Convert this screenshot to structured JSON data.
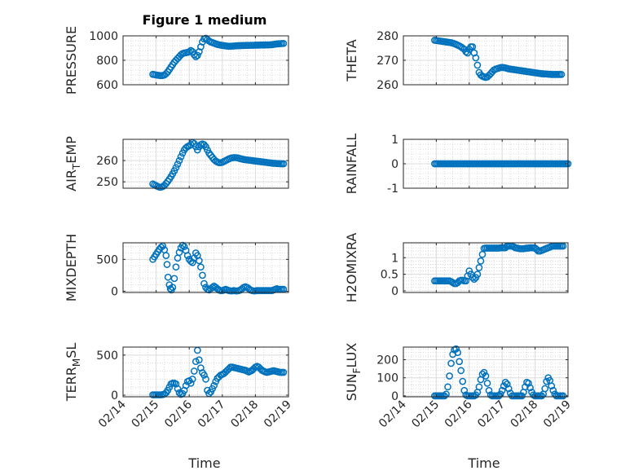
{
  "figure": {
    "title": "Figure 1 medium",
    "xlabel": "Time",
    "marker_color": "#0072BD",
    "x_ticks": [
      "02/14",
      "02/15",
      "02/16",
      "02/17",
      "02/18",
      "02/19"
    ]
  },
  "chart_data": [
    {
      "type": "scatter",
      "ylabel": "PRESSURE",
      "ylabel_sub": "",
      "ylim": [
        600,
        1000
      ],
      "yticks": [
        600,
        800,
        1000
      ],
      "grid": true,
      "x": [
        0.9,
        0.95,
        1.0,
        1.05,
        1.1,
        1.15,
        1.2,
        1.25,
        1.3,
        1.35,
        1.4,
        1.45,
        1.5,
        1.55,
        1.6,
        1.65,
        1.7,
        1.75,
        1.8,
        1.85,
        1.9,
        1.95,
        2.0,
        2.05,
        2.1,
        2.15,
        2.2,
        2.25,
        2.3,
        2.35,
        2.4,
        2.45,
        2.5,
        2.55,
        2.6,
        2.65,
        2.7,
        2.75,
        2.8,
        2.85,
        2.9,
        2.95,
        3.0,
        3.05,
        3.1,
        3.15,
        3.2,
        3.25,
        3.3,
        3.35,
        3.4,
        3.45,
        3.5,
        3.55,
        3.6,
        3.65,
        3.7,
        3.75,
        3.8,
        3.85,
        3.9,
        3.95,
        4.0,
        4.05,
        4.1,
        4.15,
        4.2,
        4.25,
        4.3,
        4.35,
        4.4,
        4.45,
        4.5,
        4.55,
        4.6,
        4.65,
        4.7,
        4.75,
        4.8,
        4.85
      ],
      "y": [
        685,
        683,
        680,
        678,
        676,
        675,
        676,
        680,
        690,
        705,
        725,
        745,
        765,
        785,
        800,
        815,
        830,
        845,
        855,
        860,
        862,
        865,
        870,
        880,
        870,
        845,
        830,
        840,
        870,
        910,
        950,
        975,
        980,
        970,
        958,
        950,
        945,
        940,
        935,
        930,
        927,
        924,
        922,
        920,
        918,
        916,
        915,
        915,
        916,
        917,
        918,
        919,
        920,
        920,
        921,
        921,
        922,
        922,
        922,
        923,
        923,
        923,
        924,
        924,
        924,
        925,
        925,
        925,
        926,
        926,
        926,
        927,
        928,
        930,
        932,
        934,
        935,
        936,
        937,
        938
      ]
    },
    {
      "type": "scatter",
      "ylabel": "THETA",
      "ylabel_sub": "",
      "ylim": [
        260,
        280
      ],
      "yticks": [
        260,
        270,
        280
      ],
      "grid": true,
      "x": [
        0.95,
        1.0,
        1.05,
        1.1,
        1.15,
        1.2,
        1.25,
        1.3,
        1.35,
        1.4,
        1.45,
        1.5,
        1.55,
        1.6,
        1.65,
        1.7,
        1.75,
        1.8,
        1.85,
        1.9,
        1.95,
        2.0,
        2.05,
        2.1,
        2.15,
        2.2,
        2.25,
        2.3,
        2.35,
        2.4,
        2.45,
        2.5,
        2.55,
        2.6,
        2.65,
        2.7,
        2.75,
        2.8,
        2.85,
        2.9,
        2.95,
        3.0,
        3.05,
        3.1,
        3.15,
        3.2,
        3.25,
        3.3,
        3.35,
        3.4,
        3.45,
        3.5,
        3.55,
        3.6,
        3.65,
        3.7,
        3.75,
        3.8,
        3.85,
        3.9,
        3.95,
        4.0,
        4.05,
        4.1,
        4.15,
        4.2,
        4.25,
        4.3,
        4.35,
        4.4,
        4.45,
        4.5,
        4.55,
        4.6,
        4.65,
        4.7,
        4.75,
        4.8
      ],
      "y": [
        278.2,
        278.1,
        278.0,
        277.9,
        277.8,
        277.7,
        277.6,
        277.5,
        277.4,
        277.3,
        277.2,
        277.0,
        276.8,
        276.5,
        276.2,
        275.9,
        275.5,
        275.0,
        274.5,
        273.5,
        273.0,
        274.5,
        275.5,
        275.5,
        273.0,
        271.0,
        268.0,
        265.0,
        264.0,
        263.5,
        263.2,
        263.0,
        263.2,
        263.8,
        264.5,
        265.3,
        266.0,
        266.4,
        266.6,
        266.8,
        267.0,
        267.1,
        267.0,
        266.9,
        266.7,
        266.5,
        266.4,
        266.3,
        266.2,
        266.1,
        266.0,
        265.9,
        265.8,
        265.7,
        265.6,
        265.5,
        265.4,
        265.3,
        265.2,
        265.1,
        265.0,
        264.9,
        264.8,
        264.7,
        264.6,
        264.5,
        264.5,
        264.4,
        264.4,
        264.3,
        264.3,
        264.2,
        264.2,
        264.2,
        264.2,
        264.2,
        264.2,
        264.2
      ]
    },
    {
      "type": "scatter",
      "ylabel": "AIR",
      "ylabel_sub": "T",
      "ylabel_rest": "EMP",
      "ylim": [
        247,
        270
      ],
      "yticks": [
        250,
        260
      ],
      "grid": true,
      "x": [
        0.9,
        0.95,
        1.0,
        1.05,
        1.1,
        1.15,
        1.2,
        1.25,
        1.3,
        1.35,
        1.4,
        1.45,
        1.5,
        1.55,
        1.6,
        1.65,
        1.7,
        1.75,
        1.8,
        1.85,
        1.9,
        1.95,
        2.0,
        2.05,
        2.1,
        2.15,
        2.2,
        2.25,
        2.3,
        2.35,
        2.4,
        2.45,
        2.5,
        2.55,
        2.6,
        2.65,
        2.7,
        2.75,
        2.8,
        2.85,
        2.9,
        2.95,
        3.0,
        3.05,
        3.1,
        3.15,
        3.2,
        3.25,
        3.3,
        3.35,
        3.4,
        3.45,
        3.5,
        3.55,
        3.6,
        3.65,
        3.7,
        3.75,
        3.8,
        3.85,
        3.9,
        3.95,
        4.0,
        4.05,
        4.1,
        4.15,
        4.2,
        4.25,
        4.3,
        4.35,
        4.4,
        4.45,
        4.5,
        4.55,
        4.6,
        4.65,
        4.7,
        4.75,
        4.8,
        4.85
      ],
      "y": [
        249.0,
        248.6,
        248.2,
        247.8,
        247.5,
        247.5,
        247.8,
        248.3,
        249.2,
        250.2,
        251.3,
        252.5,
        253.8,
        255.2,
        256.7,
        258.3,
        260.0,
        261.8,
        263.5,
        265.0,
        266.0,
        266.6,
        267.0,
        267.5,
        268.5,
        268.0,
        266.5,
        265.0,
        266.5,
        267.5,
        267.8,
        267.5,
        266.5,
        265.0,
        263.5,
        262.5,
        261.5,
        260.5,
        259.8,
        259.3,
        259.0,
        259.0,
        259.2,
        259.6,
        260.0,
        260.4,
        260.8,
        261.1,
        261.3,
        261.4,
        261.4,
        261.3,
        261.1,
        260.9,
        260.7,
        260.5,
        260.4,
        260.3,
        260.2,
        260.1,
        260.0,
        259.9,
        259.8,
        259.7,
        259.6,
        259.5,
        259.4,
        259.3,
        259.2,
        259.1,
        259.0,
        258.9,
        258.8,
        258.7,
        258.7,
        258.6,
        258.6,
        258.5,
        258.5,
        258.5
      ]
    },
    {
      "type": "scatter",
      "ylabel": "RAINFALL",
      "ylabel_sub": "",
      "ylim": [
        -1,
        1
      ],
      "yticks": [
        -1,
        0,
        1
      ],
      "grid": true,
      "x": [
        0.95,
        1.0,
        1.05,
        1.1,
        1.15,
        1.2,
        1.25,
        1.3,
        1.35,
        1.4,
        1.45,
        1.5,
        1.55,
        1.6,
        1.65,
        1.7,
        1.75,
        1.8,
        1.85,
        1.9,
        1.95,
        2.0,
        2.05,
        2.1,
        2.15,
        2.2,
        2.25,
        2.3,
        2.35,
        2.4,
        2.45,
        2.5,
        2.55,
        2.6,
        2.65,
        2.7,
        2.75,
        2.8,
        2.85,
        2.9,
        2.95,
        3.0,
        3.05,
        3.1,
        3.15,
        3.2,
        3.25,
        3.3,
        3.35,
        3.4,
        3.45,
        3.5,
        3.55,
        3.6,
        3.65,
        3.7,
        3.75,
        3.8,
        3.85,
        3.9,
        3.95,
        4.0,
        4.05,
        4.1,
        4.15,
        4.2,
        4.25,
        4.3,
        4.35,
        4.4,
        4.45,
        4.5,
        4.55,
        4.6,
        4.65,
        4.7,
        4.75,
        4.8,
        4.85,
        4.9,
        4.95,
        5.0
      ],
      "y": [
        0,
        0,
        0,
        0,
        0,
        0,
        0,
        0,
        0,
        0,
        0,
        0,
        0,
        0,
        0,
        0,
        0,
        0,
        0,
        0,
        0,
        0,
        0,
        0,
        0,
        0,
        0,
        0,
        0,
        0,
        0,
        0,
        0,
        0,
        0,
        0,
        0,
        0,
        0,
        0,
        0,
        0,
        0,
        0,
        0,
        0,
        0,
        0,
        0,
        0,
        0,
        0,
        0,
        0,
        0,
        0,
        0,
        0,
        0,
        0,
        0,
        0,
        0,
        0,
        0,
        0,
        0,
        0,
        0,
        0,
        0,
        0,
        0,
        0,
        0,
        0,
        0,
        0,
        0,
        0,
        0,
        0
      ]
    },
    {
      "type": "scatter",
      "ylabel": "MIXDEPTH",
      "ylabel_sub": "",
      "ylim": [
        -20,
        760
      ],
      "yticks": [
        0,
        500
      ],
      "grid": true,
      "x": [
        0.9,
        0.95,
        1.0,
        1.05,
        1.1,
        1.15,
        1.2,
        1.25,
        1.3,
        1.33,
        1.36,
        1.4,
        1.43,
        1.46,
        1.5,
        1.55,
        1.6,
        1.65,
        1.7,
        1.75,
        1.8,
        1.85,
        1.9,
        1.95,
        2.0,
        2.05,
        2.1,
        2.15,
        2.2,
        2.25,
        2.3,
        2.35,
        2.4,
        2.45,
        2.5,
        2.55,
        2.6,
        2.65,
        2.7,
        2.75,
        2.8,
        2.85,
        2.9,
        2.95,
        3.0,
        3.05,
        3.1,
        3.15,
        3.2,
        3.25,
        3.3,
        3.35,
        3.4,
        3.45,
        3.5,
        3.55,
        3.6,
        3.65,
        3.7,
        3.75,
        3.8,
        3.85,
        3.9,
        3.95,
        4.0,
        4.05,
        4.1,
        4.15,
        4.2,
        4.25,
        4.3,
        4.35,
        4.4,
        4.45,
        4.5,
        4.55,
        4.6,
        4.65,
        4.7,
        4.75,
        4.8,
        4.85
      ],
      "y": [
        500,
        540,
        580,
        620,
        660,
        690,
        710,
        650,
        560,
        420,
        220,
        100,
        40,
        20,
        60,
        200,
        380,
        520,
        610,
        680,
        720,
        700,
        640,
        560,
        500,
        470,
        450,
        520,
        600,
        560,
        480,
        380,
        250,
        120,
        60,
        30,
        20,
        40,
        60,
        80,
        60,
        40,
        20,
        10,
        10,
        20,
        30,
        20,
        10,
        5,
        5,
        10,
        5,
        5,
        10,
        20,
        40,
        60,
        70,
        60,
        40,
        20,
        10,
        5,
        5,
        10,
        10,
        10,
        10,
        10,
        10,
        10,
        10,
        10,
        10,
        20,
        30,
        40,
        30,
        30,
        30,
        30
      ]
    },
    {
      "type": "scatter",
      "ylabel": "H2OMIXRA",
      "ylabel_sub": "",
      "ylim": [
        -0.05,
        1.45
      ],
      "yticks": [
        0,
        0.5,
        1
      ],
      "ytick_labels": [
        "0",
        "0.5",
        "1"
      ],
      "grid": true,
      "x": [
        0.95,
        1.0,
        1.05,
        1.1,
        1.15,
        1.2,
        1.25,
        1.3,
        1.35,
        1.4,
        1.45,
        1.5,
        1.55,
        1.6,
        1.65,
        1.7,
        1.75,
        1.8,
        1.85,
        1.9,
        1.95,
        2.0,
        2.05,
        2.1,
        2.15,
        2.2,
        2.25,
        2.3,
        2.35,
        2.4,
        2.45,
        2.5,
        2.55,
        2.6,
        2.65,
        2.7,
        2.75,
        2.8,
        2.85,
        2.9,
        2.95,
        3.0,
        3.05,
        3.1,
        3.15,
        3.2,
        3.25,
        3.3,
        3.35,
        3.4,
        3.45,
        3.5,
        3.55,
        3.6,
        3.65,
        3.7,
        3.75,
        3.8,
        3.85,
        3.9,
        3.95,
        4.0,
        4.05,
        4.1,
        4.15,
        4.2,
        4.25,
        4.3,
        4.35,
        4.4,
        4.45,
        4.5,
        4.55,
        4.6,
        4.65,
        4.7,
        4.75,
        4.8,
        4.85
      ],
      "y": [
        0.3,
        0.3,
        0.3,
        0.3,
        0.3,
        0.3,
        0.3,
        0.3,
        0.3,
        0.3,
        0.28,
        0.25,
        0.22,
        0.22,
        0.25,
        0.3,
        0.32,
        0.32,
        0.3,
        0.3,
        0.45,
        0.6,
        0.5,
        0.4,
        0.35,
        0.4,
        0.5,
        0.7,
        0.9,
        1.1,
        1.28,
        1.29,
        1.29,
        1.29,
        1.29,
        1.29,
        1.29,
        1.29,
        1.29,
        1.29,
        1.3,
        1.3,
        1.3,
        1.3,
        1.35,
        1.35,
        1.35,
        1.35,
        1.33,
        1.3,
        1.29,
        1.28,
        1.27,
        1.27,
        1.27,
        1.28,
        1.29,
        1.29,
        1.3,
        1.3,
        1.3,
        1.29,
        1.25,
        1.2,
        1.2,
        1.22,
        1.24,
        1.26,
        1.28,
        1.3,
        1.32,
        1.34,
        1.35,
        1.35,
        1.35,
        1.35,
        1.35,
        1.35,
        1.35
      ]
    },
    {
      "type": "scatter",
      "ylabel": "TERR",
      "ylabel_sub": "M",
      "ylabel_rest": "SL",
      "ylim": [
        -20,
        600
      ],
      "yticks": [
        0,
        500
      ],
      "grid": true,
      "x": [
        0.9,
        0.95,
        1.0,
        1.05,
        1.1,
        1.15,
        1.2,
        1.25,
        1.3,
        1.35,
        1.4,
        1.45,
        1.5,
        1.55,
        1.6,
        1.65,
        1.7,
        1.75,
        1.8,
        1.85,
        1.9,
        1.95,
        2.0,
        2.05,
        2.1,
        2.15,
        2.2,
        2.25,
        2.3,
        2.35,
        2.4,
        2.45,
        2.5,
        2.55,
        2.6,
        2.65,
        2.7,
        2.75,
        2.8,
        2.85,
        2.9,
        2.95,
        3.0,
        3.05,
        3.1,
        3.15,
        3.2,
        3.25,
        3.3,
        3.35,
        3.4,
        3.45,
        3.5,
        3.55,
        3.6,
        3.65,
        3.7,
        3.75,
        3.8,
        3.85,
        3.9,
        3.95,
        4.0,
        4.05,
        4.1,
        4.15,
        4.2,
        4.25,
        4.3,
        4.35,
        4.4,
        4.45,
        4.5,
        4.55,
        4.6,
        4.65,
        4.7,
        4.75,
        4.8,
        4.85
      ],
      "y": [
        5,
        5,
        5,
        5,
        5,
        5,
        8,
        15,
        30,
        60,
        100,
        140,
        150,
        150,
        140,
        80,
        30,
        10,
        20,
        60,
        120,
        170,
        180,
        150,
        200,
        300,
        420,
        560,
        440,
        340,
        280,
        250,
        200,
        60,
        20,
        40,
        80,
        120,
        170,
        210,
        230,
        250,
        260,
        270,
        290,
        310,
        330,
        350,
        350,
        345,
        340,
        335,
        330,
        325,
        320,
        315,
        310,
        300,
        290,
        300,
        310,
        330,
        350,
        360,
        350,
        330,
        310,
        300,
        290,
        285,
        290,
        295,
        300,
        305,
        300,
        295,
        290,
        285,
        285,
        285
      ]
    },
    {
      "type": "scatter",
      "ylabel": "SUN",
      "ylabel_sub": "F",
      "ylabel_rest": "LUX",
      "ylim": [
        -5,
        270
      ],
      "yticks": [
        0,
        100,
        200
      ],
      "grid": true,
      "x": [
        0.95,
        1.0,
        1.05,
        1.1,
        1.15,
        1.2,
        1.25,
        1.3,
        1.35,
        1.4,
        1.45,
        1.5,
        1.55,
        1.6,
        1.65,
        1.7,
        1.75,
        1.8,
        1.85,
        1.9,
        1.95,
        2.0,
        2.05,
        2.1,
        2.15,
        2.2,
        2.25,
        2.3,
        2.35,
        2.4,
        2.45,
        2.5,
        2.55,
        2.6,
        2.65,
        2.7,
        2.75,
        2.8,
        2.85,
        2.9,
        2.95,
        3.0,
        3.05,
        3.1,
        3.15,
        3.2,
        3.25,
        3.3,
        3.35,
        3.4,
        3.45,
        3.5,
        3.55,
        3.6,
        3.65,
        3.7,
        3.75,
        3.8,
        3.85,
        3.9,
        3.95,
        4.0,
        4.05,
        4.1,
        4.15,
        4.2,
        4.25,
        4.3,
        4.35,
        4.4,
        4.45,
        4.5,
        4.55,
        4.6,
        4.65,
        4.7,
        4.75,
        4.8,
        4.85
      ],
      "y": [
        0,
        0,
        0,
        0,
        0,
        0,
        0,
        10,
        50,
        110,
        180,
        230,
        255,
        260,
        240,
        190,
        140,
        80,
        30,
        5,
        0,
        0,
        0,
        0,
        0,
        5,
        20,
        50,
        90,
        120,
        130,
        110,
        70,
        30,
        5,
        0,
        0,
        0,
        0,
        0,
        10,
        30,
        55,
        75,
        65,
        40,
        15,
        0,
        0,
        0,
        0,
        0,
        0,
        0,
        20,
        50,
        75,
        70,
        45,
        20,
        5,
        0,
        0,
        0,
        0,
        0,
        10,
        40,
        80,
        100,
        85,
        55,
        30,
        10,
        0,
        0,
        0,
        0,
        0
      ]
    }
  ]
}
